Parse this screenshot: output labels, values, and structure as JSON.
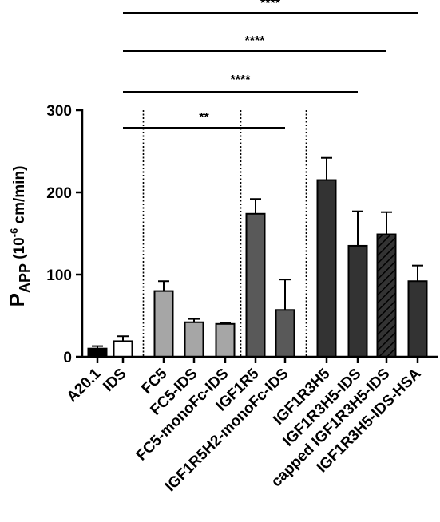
{
  "chart_data": {
    "type": "bar",
    "title": "",
    "xlabel": "",
    "ylabel": {
      "main": "P",
      "sub": "APP",
      "open": " (10",
      "exp": "-6",
      "unit": " cm/min)"
    },
    "ylim": [
      0,
      300
    ],
    "yticks": [
      "0",
      "100",
      "200",
      "300"
    ],
    "categories": [
      "A20.1",
      "IDS",
      "FC5",
      "FC5-IDS",
      "FC5-monoFc-IDS",
      "IGF1R5",
      "IGF1R5H2-monoFc-IDS",
      "IGF1R3H5",
      "IGF1R3H5-IDS",
      "capped IGF1R3H5-IDS",
      "IGF1R3H5-IDS-HSA"
    ],
    "values": [
      10,
      19,
      80,
      42,
      40,
      174,
      57,
      215,
      135,
      149,
      92
    ],
    "errors": [
      3,
      6,
      12,
      4,
      1,
      18,
      37,
      27,
      42,
      27,
      19
    ],
    "colors": {
      "black": "#000000",
      "white": "#ffffff",
      "light_gray": "#a6a6a6",
      "dark_gray": "#595959",
      "charcoal": "#333333"
    },
    "bar_colors": [
      "black",
      "white",
      "light_gray",
      "light_gray",
      "light_gray",
      "dark_gray",
      "dark_gray",
      "charcoal",
      "charcoal",
      "charcoal",
      "charcoal"
    ],
    "bar_hatched": [
      false,
      false,
      false,
      false,
      false,
      false,
      false,
      false,
      false,
      true,
      false
    ],
    "group_separators_after": [
      "IDS",
      "FC5-monoFc-IDS",
      "IGF1R5H2-monoFc-IDS"
    ],
    "significance": [
      {
        "from": "IDS",
        "to": "IGF1R5H2-monoFc-IDS",
        "label": "**"
      },
      {
        "from": "IDS",
        "to": "IGF1R3H5-IDS",
        "label": "****"
      },
      {
        "from": "IDS",
        "to": "capped IGF1R3H5-IDS",
        "label": "****"
      },
      {
        "from": "IDS",
        "to": "IGF1R3H5-IDS-HSA",
        "label": "****"
      }
    ],
    "grid": false,
    "legend": "none"
  }
}
